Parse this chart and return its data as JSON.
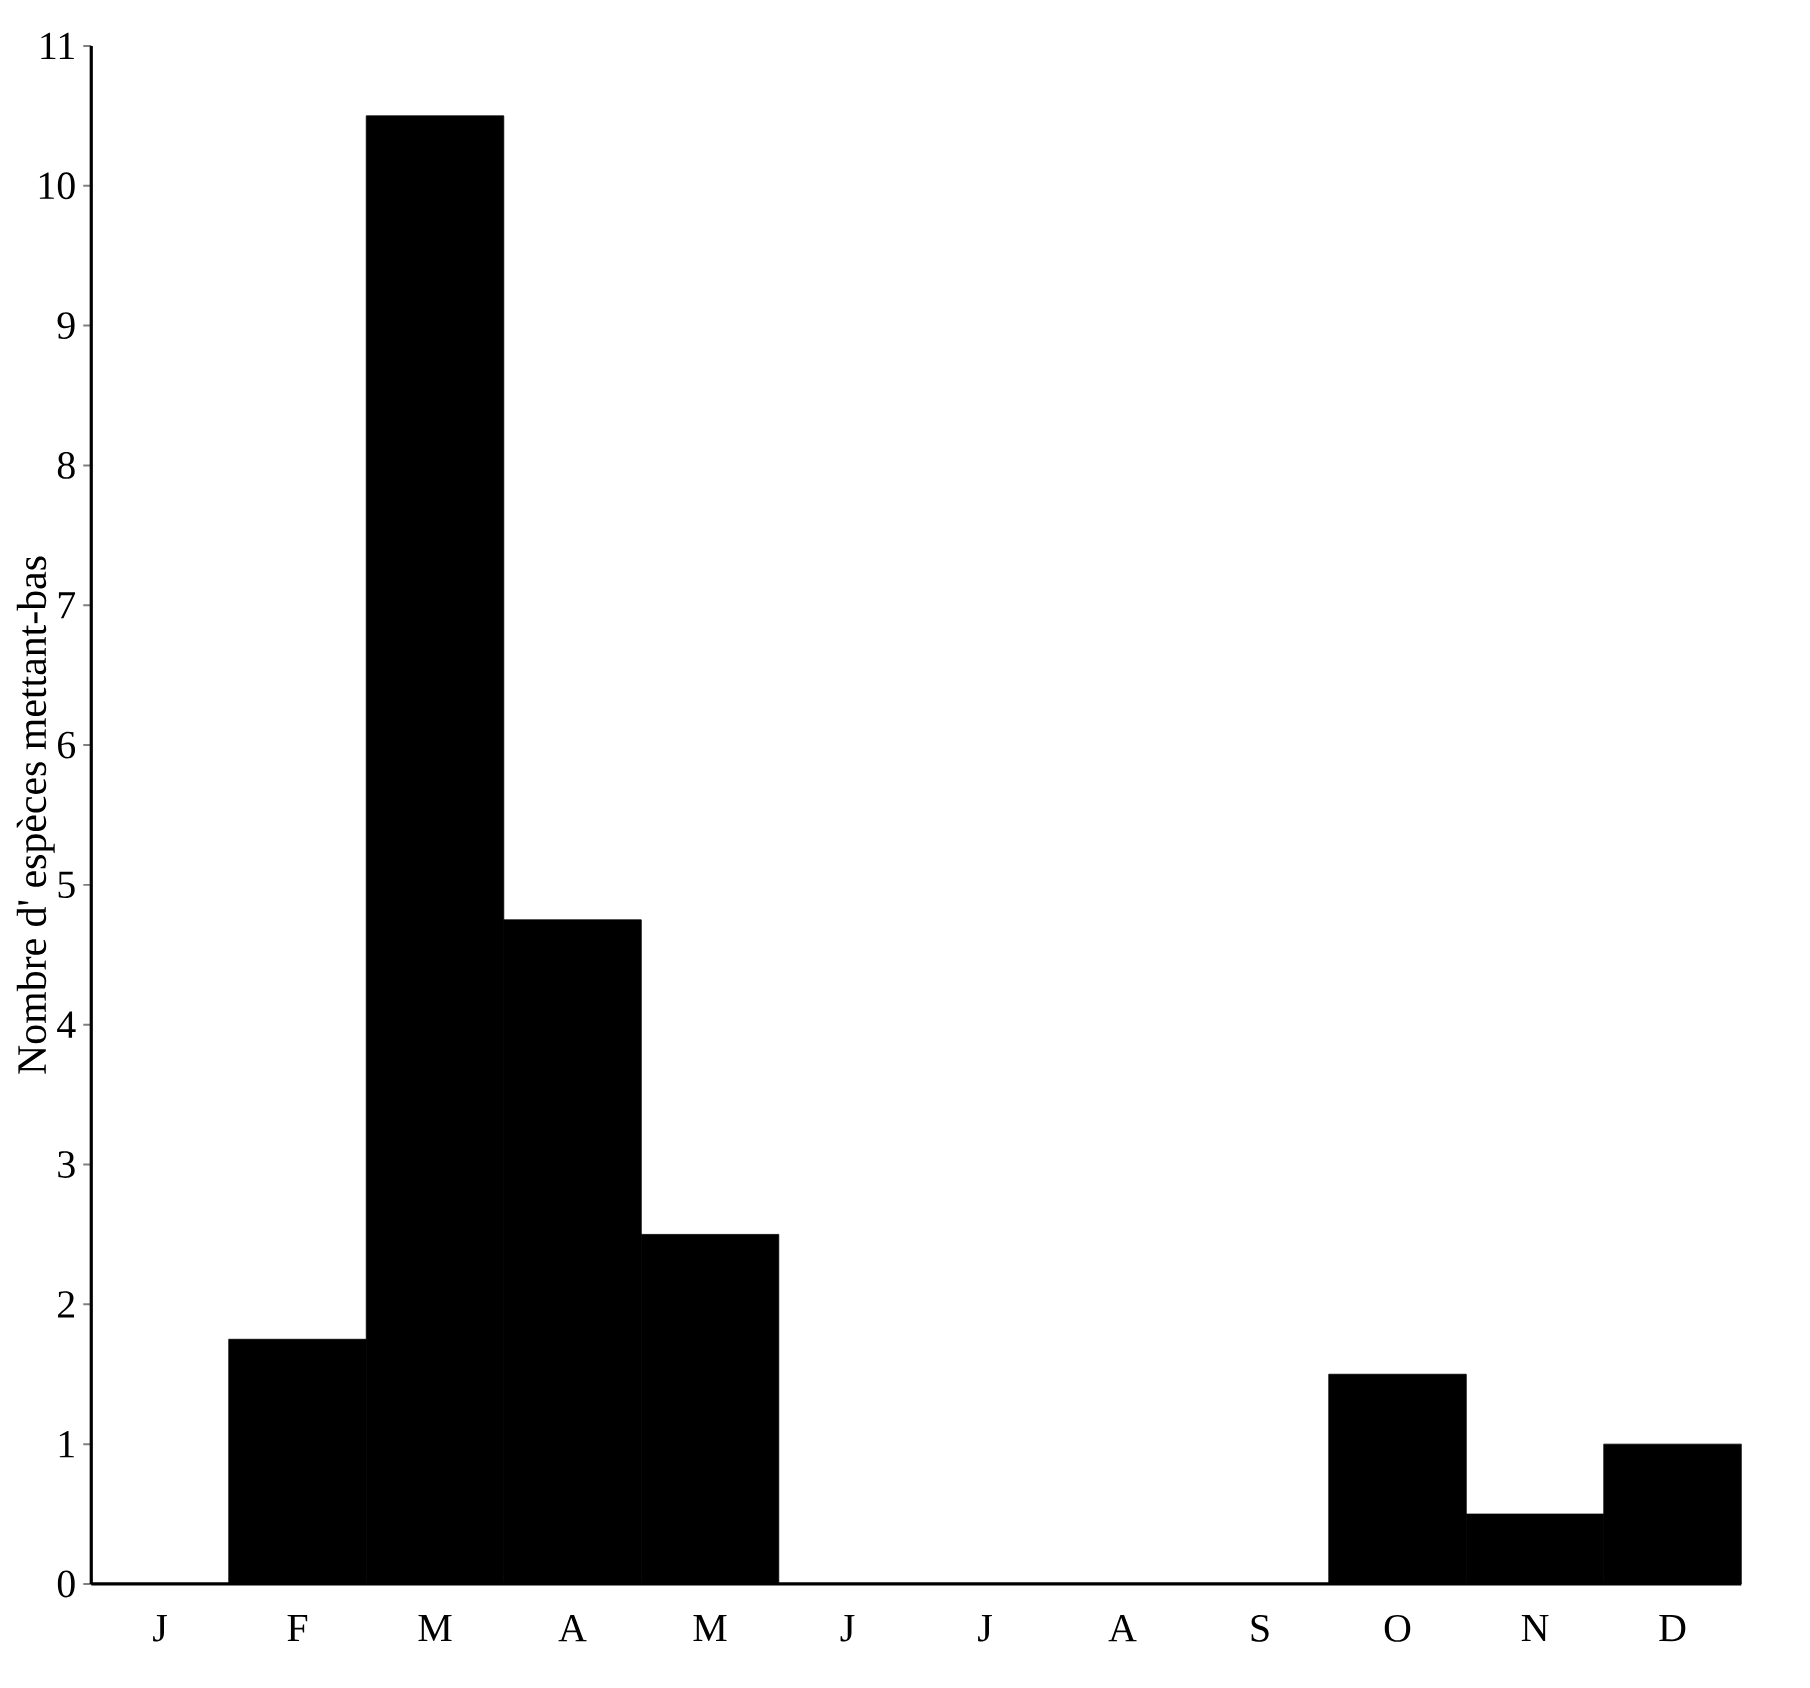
{
  "chart_data": {
    "type": "bar",
    "ylabel": "Nombre d' espèces  mettant-bas",
    "categories": [
      "J",
      "F",
      "M",
      "A",
      "M",
      "J",
      "J",
      "A",
      "S",
      "O",
      "N",
      "D"
    ],
    "values": [
      0,
      1.75,
      10.5,
      4.75,
      2.5,
      0,
      0,
      0,
      0,
      1.5,
      0.5,
      1.0
    ],
    "color": "#000000",
    "ylim": [
      0,
      11
    ],
    "yticks": [
      0,
      1,
      2,
      3,
      4,
      5,
      6,
      7,
      8,
      9,
      10,
      11
    ]
  }
}
